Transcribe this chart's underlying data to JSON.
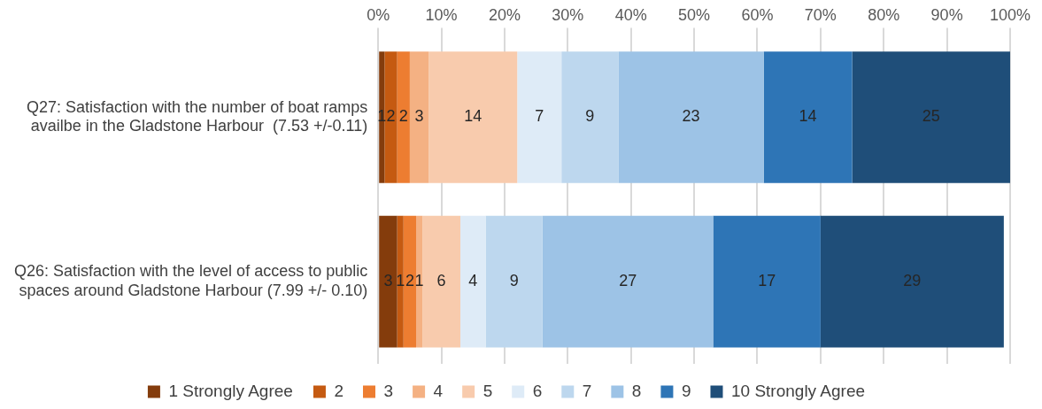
{
  "chart_data": {
    "type": "bar",
    "orientation": "horizontal",
    "stacked": true,
    "categories": [
      "Q27: Satisfaction with the number of boat ramps availbe in the Gladstone Harbour  (7.53 +/-0.11)",
      "Q26: Satisfaction with the level of access to public spaces around Gladstone Harbour (7.99 +/- 0.10)"
    ],
    "series": [
      {
        "name": "1 Strongly Agree",
        "color": "#843c0c",
        "values": [
          1,
          3
        ]
      },
      {
        "name": "2",
        "color": "#c55a11",
        "values": [
          2,
          1
        ]
      },
      {
        "name": "3",
        "color": "#ed7d31",
        "values": [
          2,
          2
        ]
      },
      {
        "name": "4",
        "color": "#f4b183",
        "values": [
          3,
          1
        ]
      },
      {
        "name": "5",
        "color": "#f8cbad",
        "values": [
          14,
          6
        ]
      },
      {
        "name": "6",
        "color": "#deebf7",
        "values": [
          7,
          4
        ]
      },
      {
        "name": "7",
        "color": "#bdd7ee",
        "values": [
          9,
          9
        ]
      },
      {
        "name": "8",
        "color": "#9dc3e6",
        "values": [
          23,
          27
        ]
      },
      {
        "name": "9",
        "color": "#2e75b6",
        "values": [
          14,
          17
        ]
      },
      {
        "name": "10 Strongly Agree",
        "color": "#1f4e79",
        "values": [
          25,
          29
        ]
      }
    ],
    "xlim": [
      0,
      100
    ],
    "xticks": [
      {
        "value": 0,
        "label": "0%"
      },
      {
        "value": 10,
        "label": "10%"
      },
      {
        "value": 20,
        "label": "20%"
      },
      {
        "value": 30,
        "label": "30%"
      },
      {
        "value": 40,
        "label": "40%"
      },
      {
        "value": 50,
        "label": "50%"
      },
      {
        "value": 60,
        "label": "60%"
      },
      {
        "value": 70,
        "label": "70%"
      },
      {
        "value": 80,
        "label": "80%"
      },
      {
        "value": 90,
        "label": "90%"
      },
      {
        "value": 100,
        "label": "100%"
      }
    ],
    "grid": "x",
    "legend": "bottom",
    "data_labels": true
  }
}
